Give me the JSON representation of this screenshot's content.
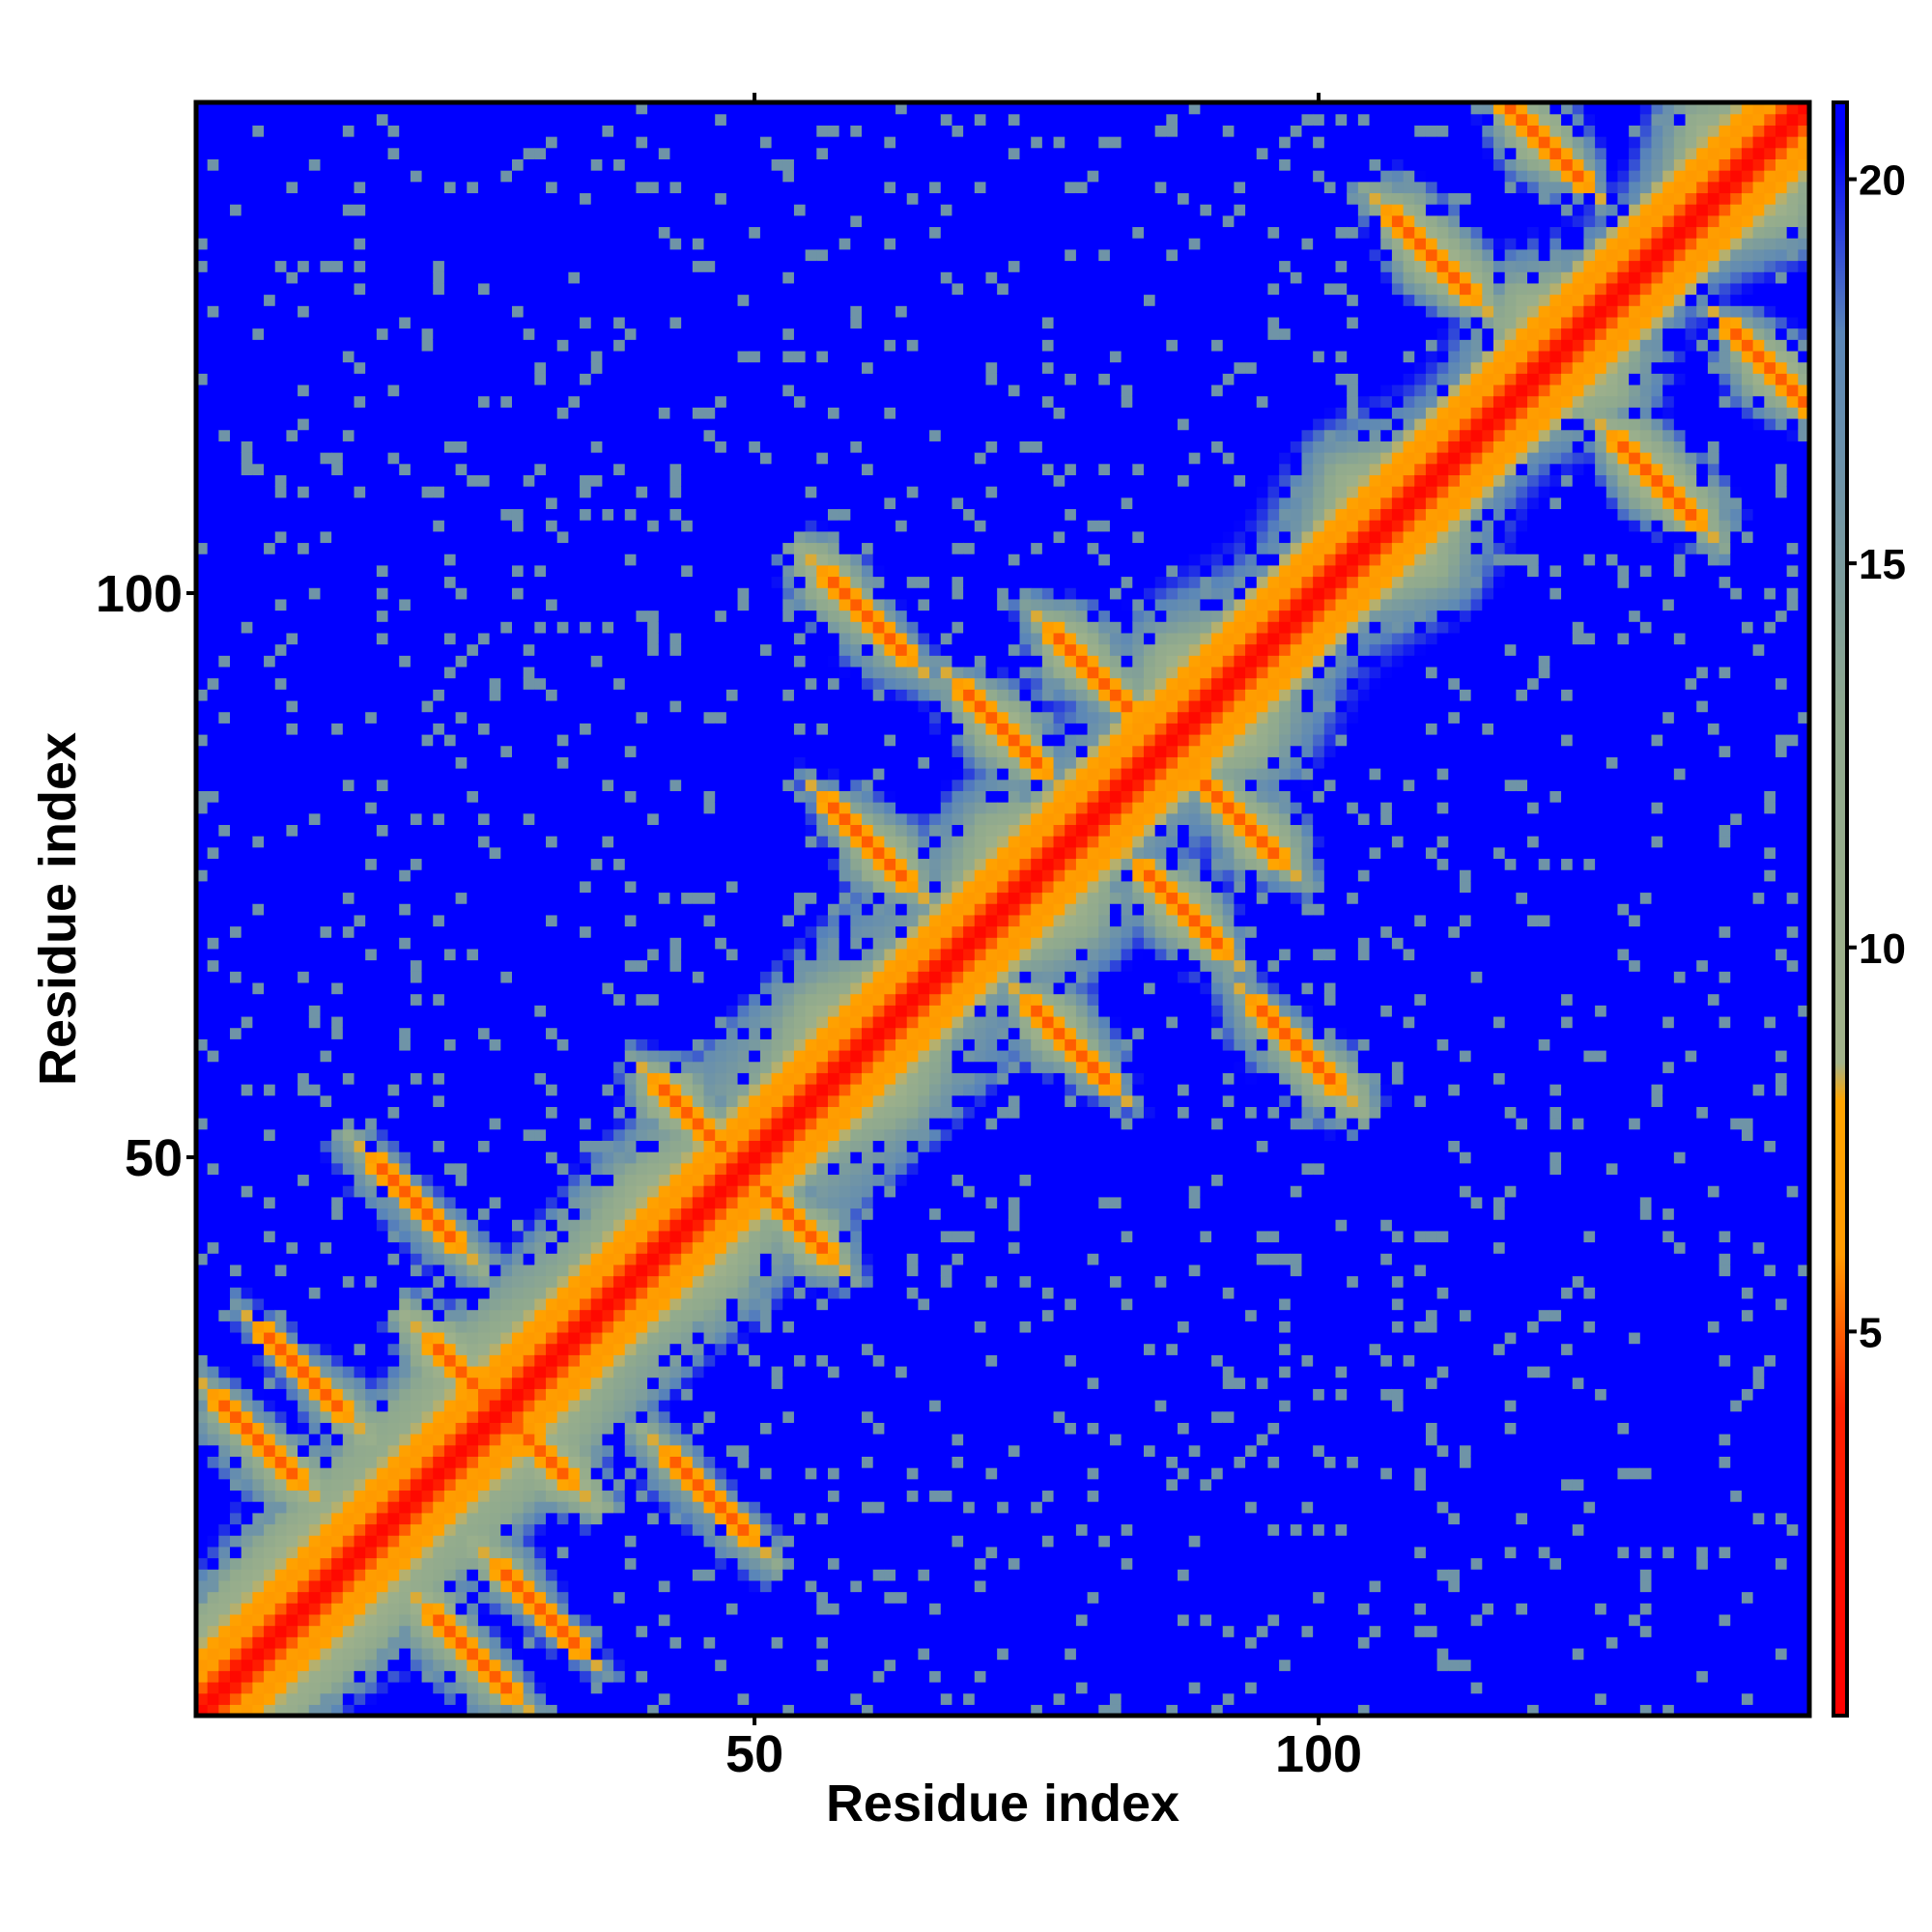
{
  "chart_data": {
    "type": "heatmap",
    "title": "",
    "xlabel": "Residue index",
    "ylabel": "Residue index",
    "n_residues": 143,
    "xlim": [
      1,
      143
    ],
    "ylim": [
      1,
      143
    ],
    "x_ticks": [
      50,
      100
    ],
    "y_ticks": [
      50,
      100
    ],
    "colorbar": {
      "ticks": [
        5,
        10,
        15,
        20
      ],
      "range": [
        0,
        21
      ],
      "colors": [
        {
          "value": 0,
          "color": "#ff0000"
        },
        {
          "value": 4,
          "color": "#ff2000"
        },
        {
          "value": 6,
          "color": "#ff9a00"
        },
        {
          "value": 8,
          "color": "#ffa500"
        },
        {
          "value": 8.5,
          "color": "#a2b38a"
        },
        {
          "value": 13,
          "color": "#8fa98e"
        },
        {
          "value": 18,
          "color": "#5a86b8"
        },
        {
          "value": 20.5,
          "color": "#0000ff"
        }
      ]
    },
    "description_values": {
      "diagonal_distance": 1,
      "far_distance": 21
    },
    "strands": [
      {
        "a": 6,
        "b": 25
      },
      {
        "a": 10,
        "b": 31
      },
      {
        "a": 25,
        "b": 30
      },
      {
        "a": 20,
        "b": 46
      },
      {
        "a": 45,
        "b": 53
      },
      {
        "a": 60,
        "b": 78
      },
      {
        "a": 60,
        "b": 98
      },
      {
        "a": 72,
        "b": 88
      },
      {
        "a": 80,
        "b": 93
      },
      {
        "a": 110,
        "b": 130
      },
      {
        "a": 120,
        "b": 140
      }
    ],
    "grid": false,
    "legend": "colorbar-right"
  }
}
